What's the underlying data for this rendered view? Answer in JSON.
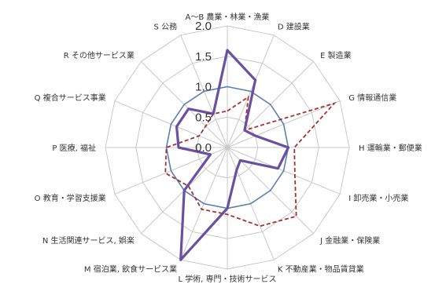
{
  "chart_data": {
    "type": "radar",
    "title": "",
    "categories": [
      "A～B 農業・林業・漁業",
      "D 建設業",
      "E 製造業",
      "G 情報通信業",
      "H 運輸業・郵便業",
      "I 卸売業・小売業",
      "J 金融業・保険業",
      "K 不動産業・物品賃貸業",
      "L 学術, 専門・技術サービス",
      "M 宿泊業, 飲食サービス業",
      "N 生活関連サービス, 娯楽",
      "O 教育・学習支援業",
      "P 医療, 福祉",
      "Q 複合サービス事業",
      "R その他サービス業",
      "S 公務"
    ],
    "ticks": [
      "0.0",
      "0.5",
      "1.0",
      "1.5",
      "2.0"
    ],
    "rmax": 2.0,
    "series": [
      {
        "style": "solid-thin",
        "color": "#5b7fb0",
        "values": [
          1.0,
          1.0,
          1.0,
          1.0,
          1.0,
          1.0,
          1.0,
          1.0,
          1.0,
          1.0,
          1.0,
          1.0,
          1.0,
          1.0,
          1.0,
          1.0
        ]
      },
      {
        "style": "dashed",
        "color": "#a33333",
        "values": [
          0.6,
          0.9,
          0.4,
          1.9,
          1.1,
          1.2,
          1.6,
          1.4,
          1.1,
          1.1,
          0.9,
          1.1,
          1.0,
          0.5,
          0.5,
          0.6
        ]
      },
      {
        "style": "solid-thick",
        "color": "#6a50a0",
        "values": [
          1.6,
          1.2,
          0.4,
          0.5,
          1.0,
          0.9,
          0.3,
          0.4,
          1.0,
          2.0,
          1.0,
          0.3,
          0.8,
          0.9,
          0.9,
          0.6
        ]
      }
    ]
  }
}
